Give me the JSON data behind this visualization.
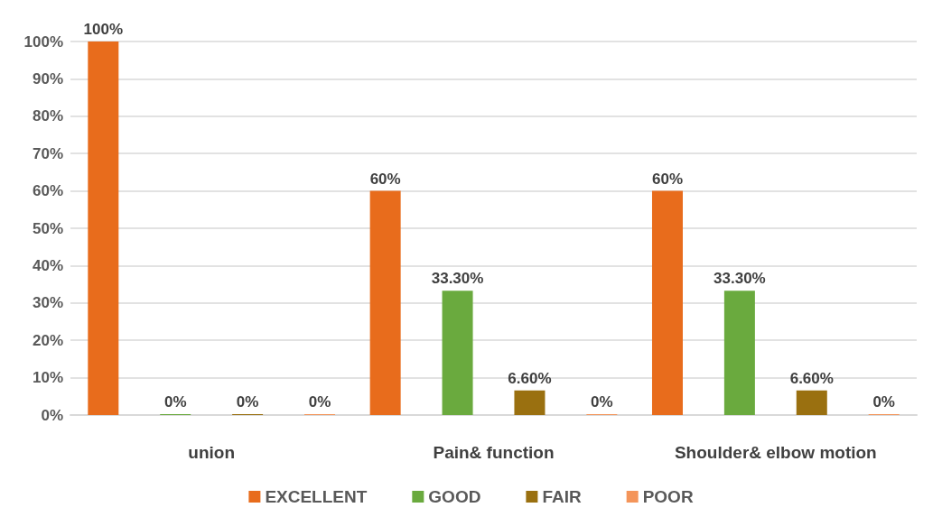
{
  "chart_data": {
    "type": "bar",
    "categories": [
      "union",
      "Pain& function",
      "Shoulder& elbow motion"
    ],
    "series": [
      {
        "name": "EXCELLENT",
        "color": "#e86c1c",
        "values": [
          100,
          60,
          60
        ],
        "value_labels": [
          "100%",
          "60%",
          "60%"
        ]
      },
      {
        "name": "GOOD",
        "color": "#6aaa3e",
        "values": [
          0,
          33.3,
          33.3
        ],
        "value_labels": [
          "0%",
          "33.30%",
          "33.30%"
        ]
      },
      {
        "name": "FAIR",
        "color": "#9a7010",
        "values": [
          0,
          6.6,
          6.6
        ],
        "value_labels": [
          "0%",
          "6.60%",
          "6.60%"
        ]
      },
      {
        "name": "POOR",
        "color": "#f4955a",
        "values": [
          0,
          0,
          0
        ],
        "value_labels": [
          "0%",
          "0%",
          "0%"
        ]
      }
    ],
    "ylim": [
      0,
      100
    ],
    "yticks": [
      {
        "value": 0,
        "label": "0%"
      },
      {
        "value": 10,
        "label": "10%"
      },
      {
        "value": 20,
        "label": "20%"
      },
      {
        "value": 30,
        "label": "30%"
      },
      {
        "value": 40,
        "label": "40%"
      },
      {
        "value": 50,
        "label": "50%"
      },
      {
        "value": 60,
        "label": "60%"
      },
      {
        "value": 70,
        "label": "70%"
      },
      {
        "value": 80,
        "label": "80%"
      },
      {
        "value": 90,
        "label": "90%"
      },
      {
        "value": 100,
        "label": "100%"
      }
    ],
    "grid": "y",
    "legend": "bottom"
  }
}
